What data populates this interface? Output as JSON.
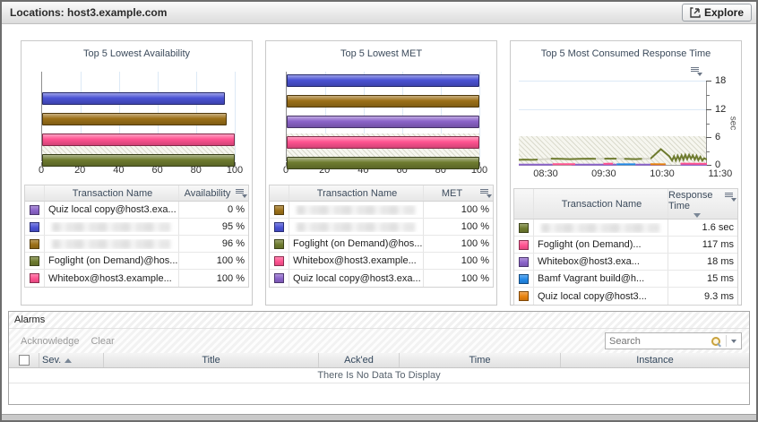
{
  "header": {
    "title": "Locations: host3.example.com",
    "explore_label": "Explore"
  },
  "icons": {
    "explore": "arrow-into-box",
    "customizer": "list-with-caret",
    "sort_asc": "triangle-up",
    "sort_desc": "triangle-down",
    "search": "magnifier",
    "search_dropdown": "caret-down",
    "checkbox": "empty-checkbox"
  },
  "colors": {
    "purple": "#8B63C9",
    "blue": "#4A52D4",
    "gold": "#9C7018",
    "olive": "#6E7B2F",
    "pink": "#FF5290",
    "bright_blue": "#2288E8",
    "orange": "#E8820F",
    "gap_gray": "#D6D6C9",
    "grid_blue": "#DCE9F6"
  },
  "panels": [
    {
      "title": "Top 5 Lowest Availability",
      "chart_data": {
        "type": "bar",
        "orientation": "horizontal",
        "xlim": [
          0,
          100
        ],
        "xticks": [
          0,
          20,
          40,
          60,
          80,
          100
        ],
        "series": [
          {
            "label": "Quiz local copy@host3.exa...",
            "color": "#8B63C9",
            "value": 0
          },
          {
            "label": "",
            "color": "#4A52D4",
            "value": 95
          },
          {
            "label": "",
            "color": "#9C7018",
            "value": 96
          },
          {
            "label": "Whitebox@host3.example...",
            "color": "#FF5290",
            "value": 100
          },
          {
            "label": "Foglight (on Demand)@hos...",
            "color": "#6E7B2F",
            "value": 100
          }
        ]
      },
      "table": {
        "columns": [
          "Transaction Name",
          "Availability"
        ],
        "rows": [
          {
            "color": "#8B63C9",
            "name": "Quiz local copy@host3.exa...",
            "value": "0 %",
            "redacted": false
          },
          {
            "color": "#4A52D4",
            "name": "",
            "value": "95 %",
            "redacted": true
          },
          {
            "color": "#9C7018",
            "name": "",
            "value": "96 %",
            "redacted": true
          },
          {
            "color": "#6E7B2F",
            "name": "Foglight (on Demand)@hos...",
            "value": "100 %",
            "redacted": false
          },
          {
            "color": "#FF5290",
            "name": "Whitebox@host3.example...",
            "value": "100 %",
            "redacted": false
          }
        ]
      }
    },
    {
      "title": "Top 5 Lowest MET",
      "chart_data": {
        "type": "bar",
        "orientation": "horizontal",
        "xlim": [
          0,
          100
        ],
        "xticks": [
          0,
          20,
          40,
          60,
          80,
          100
        ],
        "series": [
          {
            "label": "",
            "color": "#4A52D4",
            "value": 100
          },
          {
            "label": "",
            "color": "#9C7018",
            "value": 100
          },
          {
            "label": "Quiz local copy@host3.exa...",
            "color": "#8B63C9",
            "value": 100
          },
          {
            "label": "Whitebox@host3.example...",
            "color": "#FF5290",
            "value": 100
          },
          {
            "label": "Foglight (on Demand)@hos...",
            "color": "#6E7B2F",
            "value": 100
          }
        ]
      },
      "table": {
        "columns": [
          "Transaction Name",
          "MET"
        ],
        "rows": [
          {
            "color": "#9C7018",
            "name": "",
            "value": "100 %",
            "redacted": true
          },
          {
            "color": "#4A52D4",
            "name": "",
            "value": "100 %",
            "redacted": true
          },
          {
            "color": "#6E7B2F",
            "name": "Foglight (on Demand)@hos...",
            "value": "100 %",
            "redacted": false
          },
          {
            "color": "#FF5290",
            "name": "Whitebox@host3.example...",
            "value": "100 %",
            "redacted": false
          },
          {
            "color": "#8B63C9",
            "name": "Quiz local copy@host3.exa...",
            "value": "100 %",
            "redacted": false
          }
        ]
      }
    },
    {
      "title": "Top 5 Most Consumed Response Time",
      "chart_data": {
        "type": "line",
        "ylim": [
          0,
          18
        ],
        "yticks": [
          0,
          6,
          12,
          18
        ],
        "yminor": [
          3,
          9,
          15
        ],
        "ylabel": "sec",
        "threshold_band": [
          0,
          6
        ],
        "xticks": [
          "08:30",
          "09:30",
          "10:30",
          "11:30"
        ],
        "x_fractions": [
          0.143,
          0.452,
          0.762,
          1.071
        ],
        "series": [
          {
            "name": "",
            "color": "#6E7B2F",
            "width": 2,
            "segments": [
              [
                [
                  0,
                  1.25
                ],
                [
                  0.03,
                  1.3
                ],
                [
                  0.07,
                  1.25
                ],
                [
                  0.1,
                  1.3
                ]
              ],
              [
                [
                  0.17,
                  1.5
                ],
                [
                  0.22,
                  1.45
                ],
                [
                  0.27,
                  1.4
                ],
                [
                  0.33,
                  1.45
                ],
                [
                  0.38,
                  1.5
                ],
                [
                  0.41,
                  1.45
                ]
              ],
              [
                [
                  0.455,
                  1.5
                ],
                [
                  0.52,
                  1.5
                ]
              ],
              [
                [
                  0.56,
                  1.45
                ],
                [
                  0.62,
                  1.4
                ],
                [
                  0.655,
                  1.45
                ]
              ],
              [
                [
                  0.7,
                  1.5
                ],
                [
                  0.755,
                  3.5
                ],
                [
                  0.8,
                  2.0
                ],
                [
                  0.815,
                  1.1
                ],
                [
                  0.825,
                  2.0
                ],
                [
                  0.835,
                  1.1
                ],
                [
                  0.845,
                  2.1
                ],
                [
                  0.855,
                  1.2
                ],
                [
                  0.865,
                  2.2
                ],
                [
                  0.875,
                  1.3
                ],
                [
                  0.885,
                  2.3
                ],
                [
                  0.895,
                  1.4
                ],
                [
                  0.905,
                  2.3
                ],
                [
                  0.915,
                  1.5
                ],
                [
                  0.925,
                  2.2
                ],
                [
                  0.935,
                  1.3
                ],
                [
                  0.945,
                  2.1
                ],
                [
                  0.955,
                  1.2
                ],
                [
                  0.965,
                  1.9
                ],
                [
                  0.975,
                  1.1
                ],
                [
                  0.985,
                  1.6
                ],
                [
                  1,
                  1.3
                ]
              ]
            ]
          },
          {
            "name": "gap-filler",
            "color": "#D6D6C9",
            "width": 2,
            "segments": [
              [
                [
                  0.1,
                  1.3
                ],
                [
                  0.17,
                  1.45
                ]
              ],
              [
                [
                  0.41,
                  1.45
                ],
                [
                  0.455,
                  1.5
                ]
              ],
              [
                [
                  0.52,
                  1.5
                ],
                [
                  0.56,
                  1.45
                ]
              ],
              [
                [
                  0.655,
                  1.45
                ],
                [
                  0.7,
                  1.5
                ]
              ]
            ]
          },
          {
            "name": "Whitebox@host3.exa...",
            "color": "#8B63C9",
            "width": 2,
            "segments": [
              [
                [
                  0,
                  0.25
                ],
                [
                  0.18,
                  0.25
                ]
              ],
              [
                [
                  0.28,
                  0.22
                ],
                [
                  0.52,
                  0.22
                ]
              ],
              [
                [
                  0.62,
                  0.25
                ],
                [
                  0.78,
                  0.25
                ]
              ],
              [
                [
                  0.86,
                  0.2
                ],
                [
                  1,
                  0.2
                ]
              ]
            ]
          },
          {
            "name": "Foglight (on Demand)...",
            "color": "#FF5290",
            "width": 2,
            "segments": [
              [
                [
                  0.18,
                  0.35
                ],
                [
                  0.3,
                  0.35
                ]
              ],
              [
                [
                  0.45,
                  0.4
                ],
                [
                  0.5,
                  0.45
                ]
              ],
              [
                [
                  0.86,
                  0.45
                ],
                [
                  1,
                  0.4
                ]
              ]
            ]
          },
          {
            "name": "Bamf Vagrant build@h...",
            "color": "#2288E8",
            "width": 2,
            "segments": [
              [
                [
                  0.52,
                  0.3
                ],
                [
                  0.62,
                  0.3
                ]
              ]
            ]
          },
          {
            "name": "Quiz local copy@host3...",
            "color": "#E8820F",
            "width": 2,
            "segments": [
              [
                [
                  0.7,
                  0.35
                ],
                [
                  0.78,
                  0.3
                ]
              ]
            ]
          }
        ]
      },
      "table": {
        "columns": [
          "Transaction Name",
          "Response Time"
        ],
        "sort": {
          "column": "Response Time",
          "direction": "desc"
        },
        "rows": [
          {
            "color": "#6E7B2F",
            "name": "",
            "value": "1.6 sec",
            "redacted": true
          },
          {
            "color": "#FF5290",
            "name": "Foglight (on Demand)...",
            "value": "117 ms",
            "redacted": false
          },
          {
            "color": "#8B63C9",
            "name": "Whitebox@host3.exa...",
            "value": "18 ms",
            "redacted": false
          },
          {
            "color": "#2288E8",
            "name": "Bamf Vagrant build@h...",
            "value": "15 ms",
            "redacted": false
          },
          {
            "color": "#E8820F",
            "name": "Quiz local copy@host3...",
            "value": "9.3 ms",
            "redacted": false
          }
        ]
      }
    }
  ],
  "alarms": {
    "title": "Alarms",
    "toolbar": {
      "acknowledge_label": "Acknowledge",
      "clear_label": "Clear",
      "search_placeholder": "Search"
    },
    "table": {
      "columns": [
        "Sev.",
        "Title",
        "Ack'ed",
        "Time",
        "Instance"
      ],
      "sort": {
        "column": "Sev.",
        "direction": "asc"
      },
      "empty_message": "There Is No Data To Display"
    }
  }
}
